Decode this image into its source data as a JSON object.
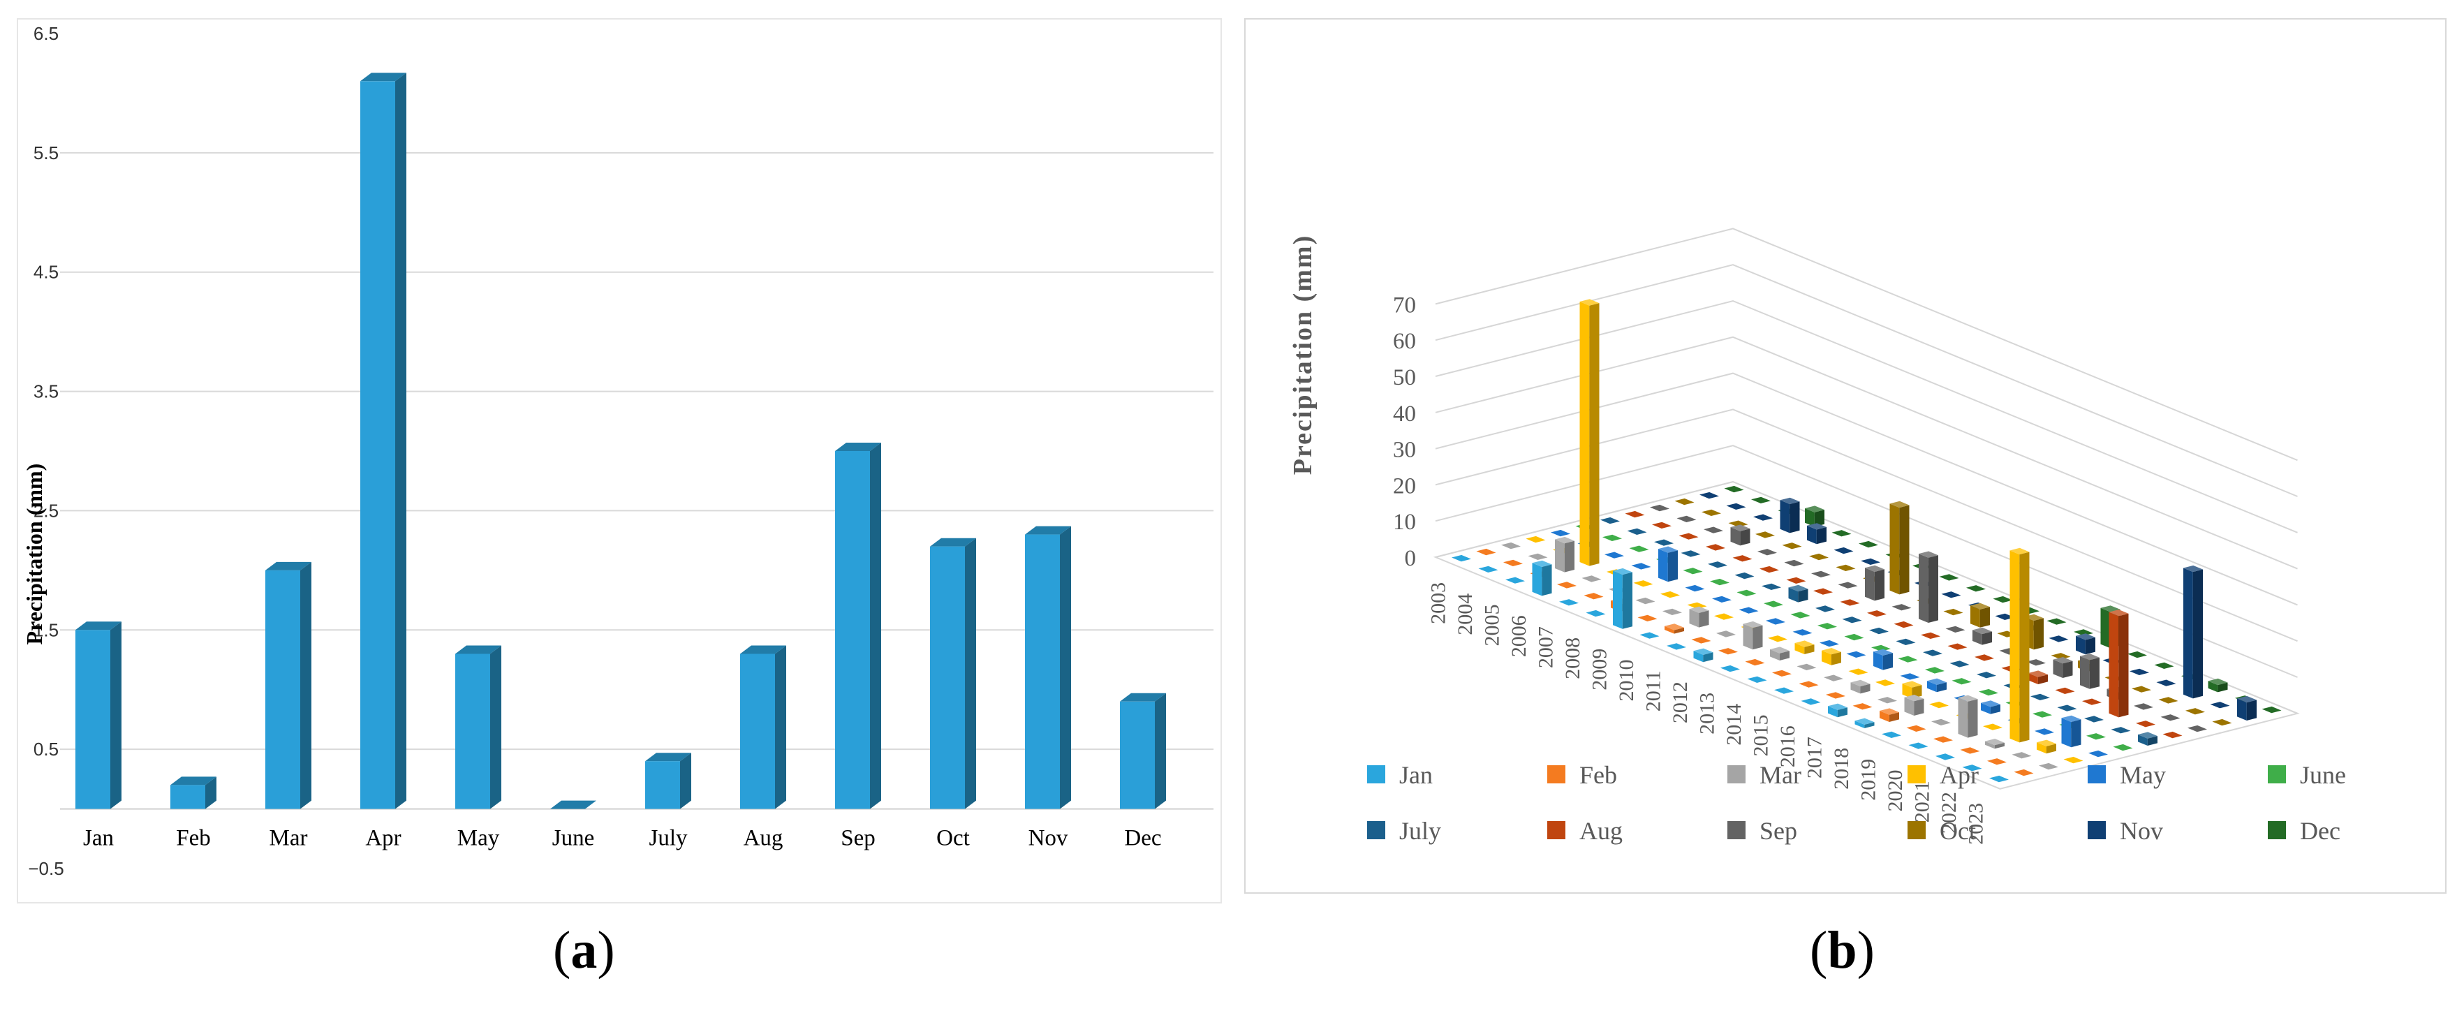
{
  "chart_data": [
    {
      "panel": "a",
      "type": "bar",
      "ylabel": "Precipitation (mm)",
      "yticks": [
        "6.5",
        "5.5",
        "4.5",
        "3.5",
        "2.5",
        "1.5",
        "0.5",
        "−0.5"
      ],
      "ylim": [
        -0.5,
        6.5
      ],
      "categories": [
        "Jan",
        "Feb",
        "Mar",
        "Apr",
        "May",
        "June",
        "July",
        "Aug",
        "Sep",
        "Oct",
        "Nov",
        "Dec"
      ],
      "values": [
        1.5,
        0.2,
        2.0,
        6.1,
        1.3,
        0.0,
        0.4,
        1.3,
        3.0,
        2.2,
        2.3,
        0.9
      ],
      "color": "#2a9fd8",
      "grid": true,
      "legend": "none"
    },
    {
      "panel": "b",
      "type": "bar",
      "ylabel": "Precipitation (mm)",
      "yticks": [
        "0",
        "10",
        "20",
        "30",
        "40",
        "50",
        "60",
        "70"
      ],
      "zlim": [
        0,
        70
      ],
      "years": [
        "2003",
        "2004",
        "2005",
        "2006",
        "2007",
        "2008",
        "2009",
        "2010",
        "2011",
        "2012",
        "2013",
        "2014",
        "2015",
        "2016",
        "2017",
        "2018",
        "2019",
        "2020",
        "2021",
        "2022",
        "2023"
      ],
      "legend_position": "bottom",
      "series": [
        {
          "name": "Jan",
          "color": "#2aa6dd",
          "values": [
            0,
            0,
            0,
            8,
            0,
            0,
            15,
            0,
            0,
            2,
            0,
            0,
            0,
            0,
            2,
            1,
            0,
            0,
            0,
            0,
            0
          ]
        },
        {
          "name": "Feb",
          "color": "#f47b20",
          "values": [
            0,
            0,
            0,
            0,
            0,
            2,
            0,
            1,
            0,
            0,
            0,
            0,
            0,
            0,
            0,
            2,
            0,
            0,
            0,
            0,
            0
          ]
        },
        {
          "name": "Mar",
          "color": "#a5a5a5",
          "values": [
            0,
            0,
            8,
            0,
            0,
            0,
            0,
            4,
            0,
            6,
            2,
            0,
            0,
            2,
            0,
            4,
            0,
            10,
            1,
            0,
            0
          ]
        },
        {
          "name": "Apr",
          "color": "#ffc000",
          "values": [
            0,
            0,
            72,
            0,
            0,
            0,
            0,
            0,
            0,
            0,
            2,
            3,
            0,
            0,
            3,
            0,
            0,
            0,
            52,
            2,
            0
          ]
        },
        {
          "name": "May",
          "color": "#1f78d1",
          "values": [
            0,
            0,
            0,
            0,
            8,
            0,
            0,
            0,
            0,
            0,
            0,
            0,
            4,
            0,
            2,
            0,
            2,
            0,
            0,
            7,
            0
          ]
        },
        {
          "name": "June",
          "color": "#3fae49",
          "values": [
            0,
            0,
            0,
            0,
            0,
            0,
            0,
            0,
            0,
            0,
            0,
            0,
            0,
            0,
            0,
            0,
            0,
            0,
            0,
            0,
            0
          ]
        },
        {
          "name": "July",
          "color": "#1b5f8c",
          "values": [
            0,
            0,
            0,
            0,
            0,
            0,
            0,
            3,
            0,
            0,
            0,
            0,
            0,
            0,
            0,
            0,
            0,
            0,
            0,
            0,
            2
          ]
        },
        {
          "name": "Aug",
          "color": "#c0450f",
          "values": [
            0,
            0,
            0,
            0,
            0,
            0,
            0,
            0,
            0,
            0,
            0,
            0,
            0,
            0,
            0,
            2,
            0,
            0,
            28,
            0,
            0
          ]
        },
        {
          "name": "Sep",
          "color": "#636363",
          "values": [
            0,
            0,
            0,
            4,
            0,
            0,
            0,
            0,
            8,
            0,
            18,
            0,
            3,
            0,
            0,
            4,
            8,
            2,
            0,
            0,
            0
          ]
        },
        {
          "name": "Oct",
          "color": "#9c7400",
          "values": [
            0,
            0,
            0,
            0,
            0,
            0,
            0,
            0,
            24,
            0,
            0,
            5,
            0,
            8,
            0,
            2,
            0,
            0,
            0,
            0,
            0
          ]
        },
        {
          "name": "Nov",
          "color": "#0f3f73",
          "values": [
            0,
            0,
            0,
            8,
            4,
            0,
            0,
            0,
            0,
            0,
            0,
            0,
            0,
            0,
            4,
            0,
            0,
            0,
            35,
            0,
            5
          ]
        },
        {
          "name": "Dec",
          "color": "#236b25",
          "values": [
            0,
            0,
            0,
            4,
            0,
            0,
            0,
            0,
            0,
            0,
            0,
            0,
            0,
            0,
            10,
            0,
            0,
            0,
            2,
            0,
            0
          ]
        }
      ]
    }
  ],
  "captions": [
    {
      "open": "(",
      "letter": "a",
      "close": ")"
    },
    {
      "open": "(",
      "letter": "b",
      "close": ")"
    }
  ]
}
